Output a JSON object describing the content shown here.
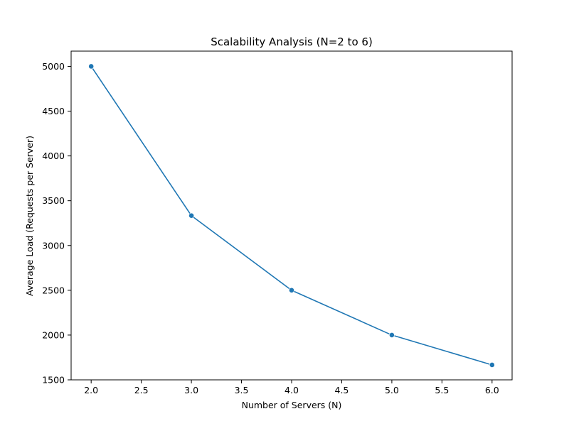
{
  "chart_data": {
    "type": "line",
    "title": "Scalability Analysis (N=2 to 6)",
    "xlabel": "Number of Servers (N)",
    "ylabel": "Average Load (Requests per Server)",
    "xlim": [
      1.8,
      6.2
    ],
    "ylim": [
      1500,
      5170
    ],
    "xticks": [
      2.0,
      2.5,
      3.0,
      3.5,
      4.0,
      4.5,
      5.0,
      5.5,
      6.0
    ],
    "xtick_labels": [
      "2.0",
      "2.5",
      "3.0",
      "3.5",
      "4.0",
      "4.5",
      "5.0",
      "5.5",
      "6.0"
    ],
    "yticks": [
      1500,
      2000,
      2500,
      3000,
      3500,
      4000,
      4500,
      5000
    ],
    "ytick_labels": [
      "1500",
      "2000",
      "2500",
      "3000",
      "3500",
      "4000",
      "4500",
      "5000"
    ],
    "grid": false,
    "series": [
      {
        "color": "#1f77b4",
        "marker": "circle",
        "x": [
          2,
          3,
          4,
          5,
          6
        ],
        "y": [
          5000,
          3333.33,
          2500,
          2000,
          1666.67
        ]
      }
    ]
  }
}
